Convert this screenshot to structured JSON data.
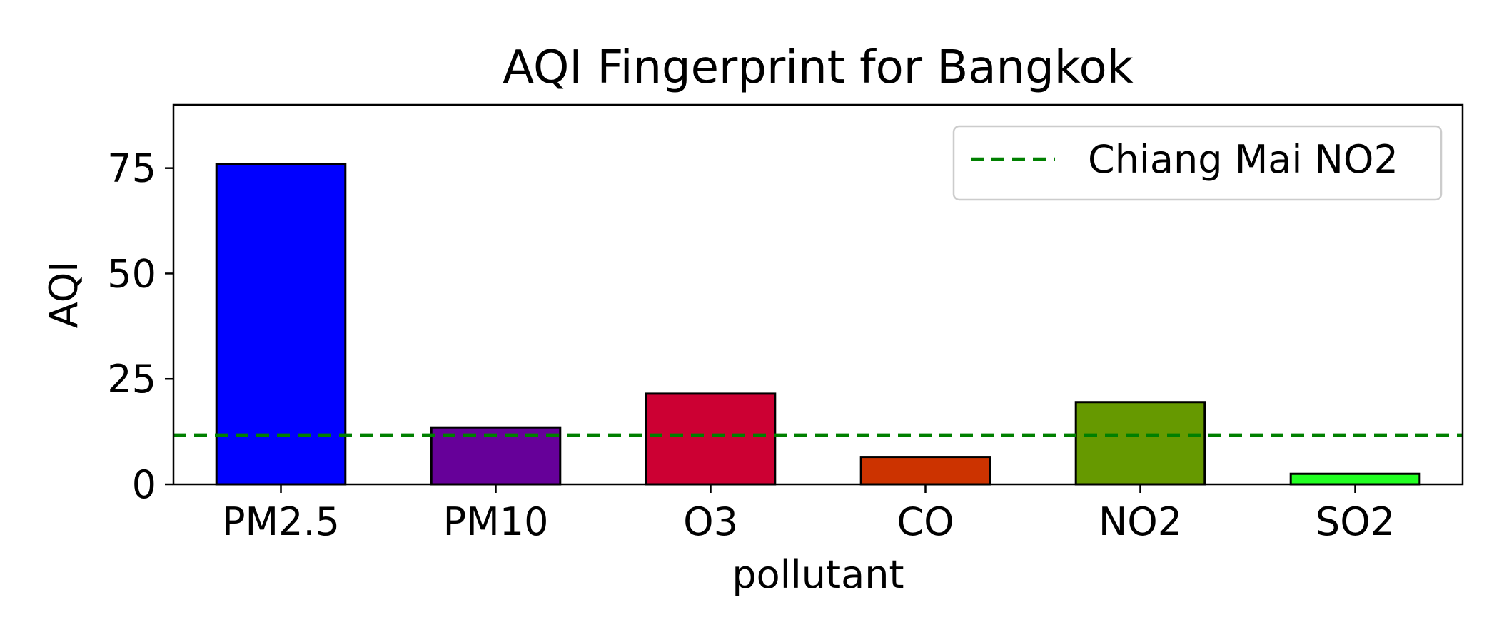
{
  "chart_data": {
    "type": "bar",
    "title": "AQI Fingerprint for Bangkok",
    "xlabel": "pollutant",
    "ylabel": "AQI",
    "categories": [
      "PM2.5",
      "PM10",
      "O3",
      "CO",
      "NO2",
      "SO2"
    ],
    "values": [
      76,
      13.5,
      21.5,
      6.5,
      19.5,
      2.5
    ],
    "bar_colors": [
      "#0000ff",
      "#660099",
      "#cc0033",
      "#cc3300",
      "#669900",
      "#22ff22"
    ],
    "ylim": [
      0,
      90
    ],
    "yticks": [
      0,
      25,
      50,
      75
    ],
    "grid": false,
    "reference_line": {
      "label": "Chiang Mai NO2",
      "value": 11.7,
      "color": "#008000",
      "style": "dashed"
    },
    "legend": {
      "position": "top-right",
      "entries": [
        "Chiang Mai NO2"
      ]
    }
  }
}
